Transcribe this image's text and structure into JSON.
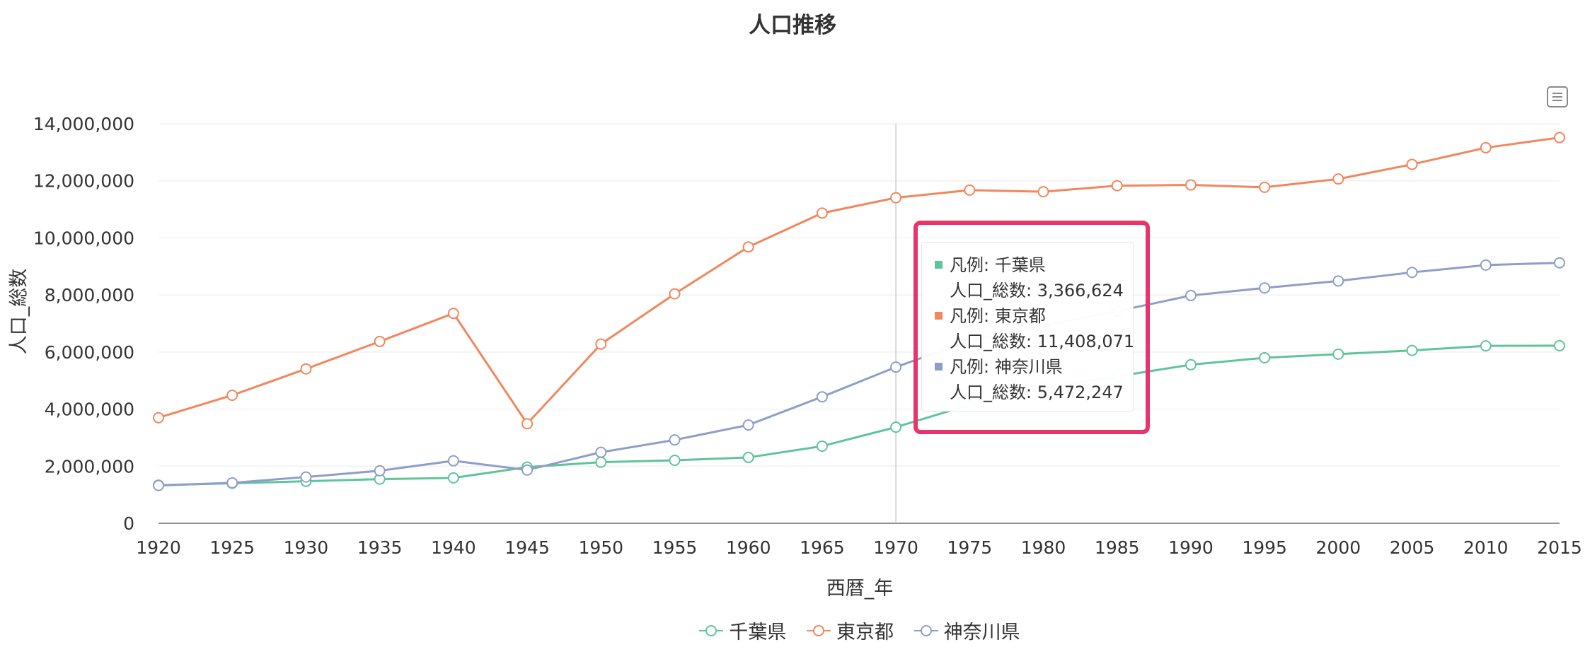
{
  "chart_data": {
    "type": "line",
    "title": "人口推移",
    "xlabel": "西暦_年",
    "ylabel": "人口_総数",
    "categories": [
      "1920",
      "1925",
      "1930",
      "1935",
      "1940",
      "1945",
      "1950",
      "1955",
      "1960",
      "1965",
      "1970",
      "1975",
      "1980",
      "1985",
      "1990",
      "1995",
      "2000",
      "2005",
      "2010",
      "2015"
    ],
    "ylim": [
      0,
      14000000
    ],
    "yticks": [
      "0",
      "2,000,000",
      "4,000,000",
      "6,000,000",
      "8,000,000",
      "10,000,000",
      "12,000,000",
      "14,000,000"
    ],
    "yticks_values": [
      0,
      2000000,
      4000000,
      6000000,
      8000000,
      10000000,
      12000000,
      14000000
    ],
    "grid": true,
    "legend_position": "bottom",
    "series": [
      {
        "name": "千葉県",
        "color": "#5fc49c",
        "values": [
          1336155,
          1399257,
          1470121,
          1546394,
          1588425,
          1966862,
          2139037,
          2205060,
          2306010,
          2701770,
          3366624,
          4149147,
          4735424,
          5148163,
          5555429,
          5797782,
          5926285,
          6056462,
          6216289,
          6222666
        ]
      },
      {
        "name": "東京都",
        "color": "#f0875d",
        "values": [
          3699428,
          4485144,
          5408678,
          6369919,
          7354971,
          3488284,
          6277500,
          8037084,
          9683802,
          10869244,
          11408071,
          11673554,
          11618281,
          11829363,
          11855563,
          11773605,
          12064101,
          12576601,
          13159388,
          13515271
        ]
      },
      {
        "name": "神奈川県",
        "color": "#8f9ec8",
        "values": [
          1323390,
          1416792,
          1619606,
          1840005,
          2188974,
          1865667,
          2487665,
          2919497,
          3443176,
          4430743,
          5472247,
          6397748,
          6924348,
          7431974,
          7980391,
          8245900,
          8489974,
          8791597,
          9048331,
          9126214
        ]
      }
    ],
    "tooltip": {
      "category": "1970",
      "entries": [
        {
          "legend_text": "凡例: 千葉県",
          "value_text": "人口_総数: 3,366,624",
          "color": "#5fc49c"
        },
        {
          "legend_text": "凡例: 東京都",
          "value_text": "人口_総数: 11,408,071",
          "color": "#f0875d"
        },
        {
          "legend_text": "凡例: 神奈川県",
          "value_text": "人口_総数: 5,472,247",
          "color": "#8f9ec8"
        }
      ]
    },
    "highlight_color": "#e8336b"
  },
  "toolbox": {
    "icon": "menu-icon"
  }
}
